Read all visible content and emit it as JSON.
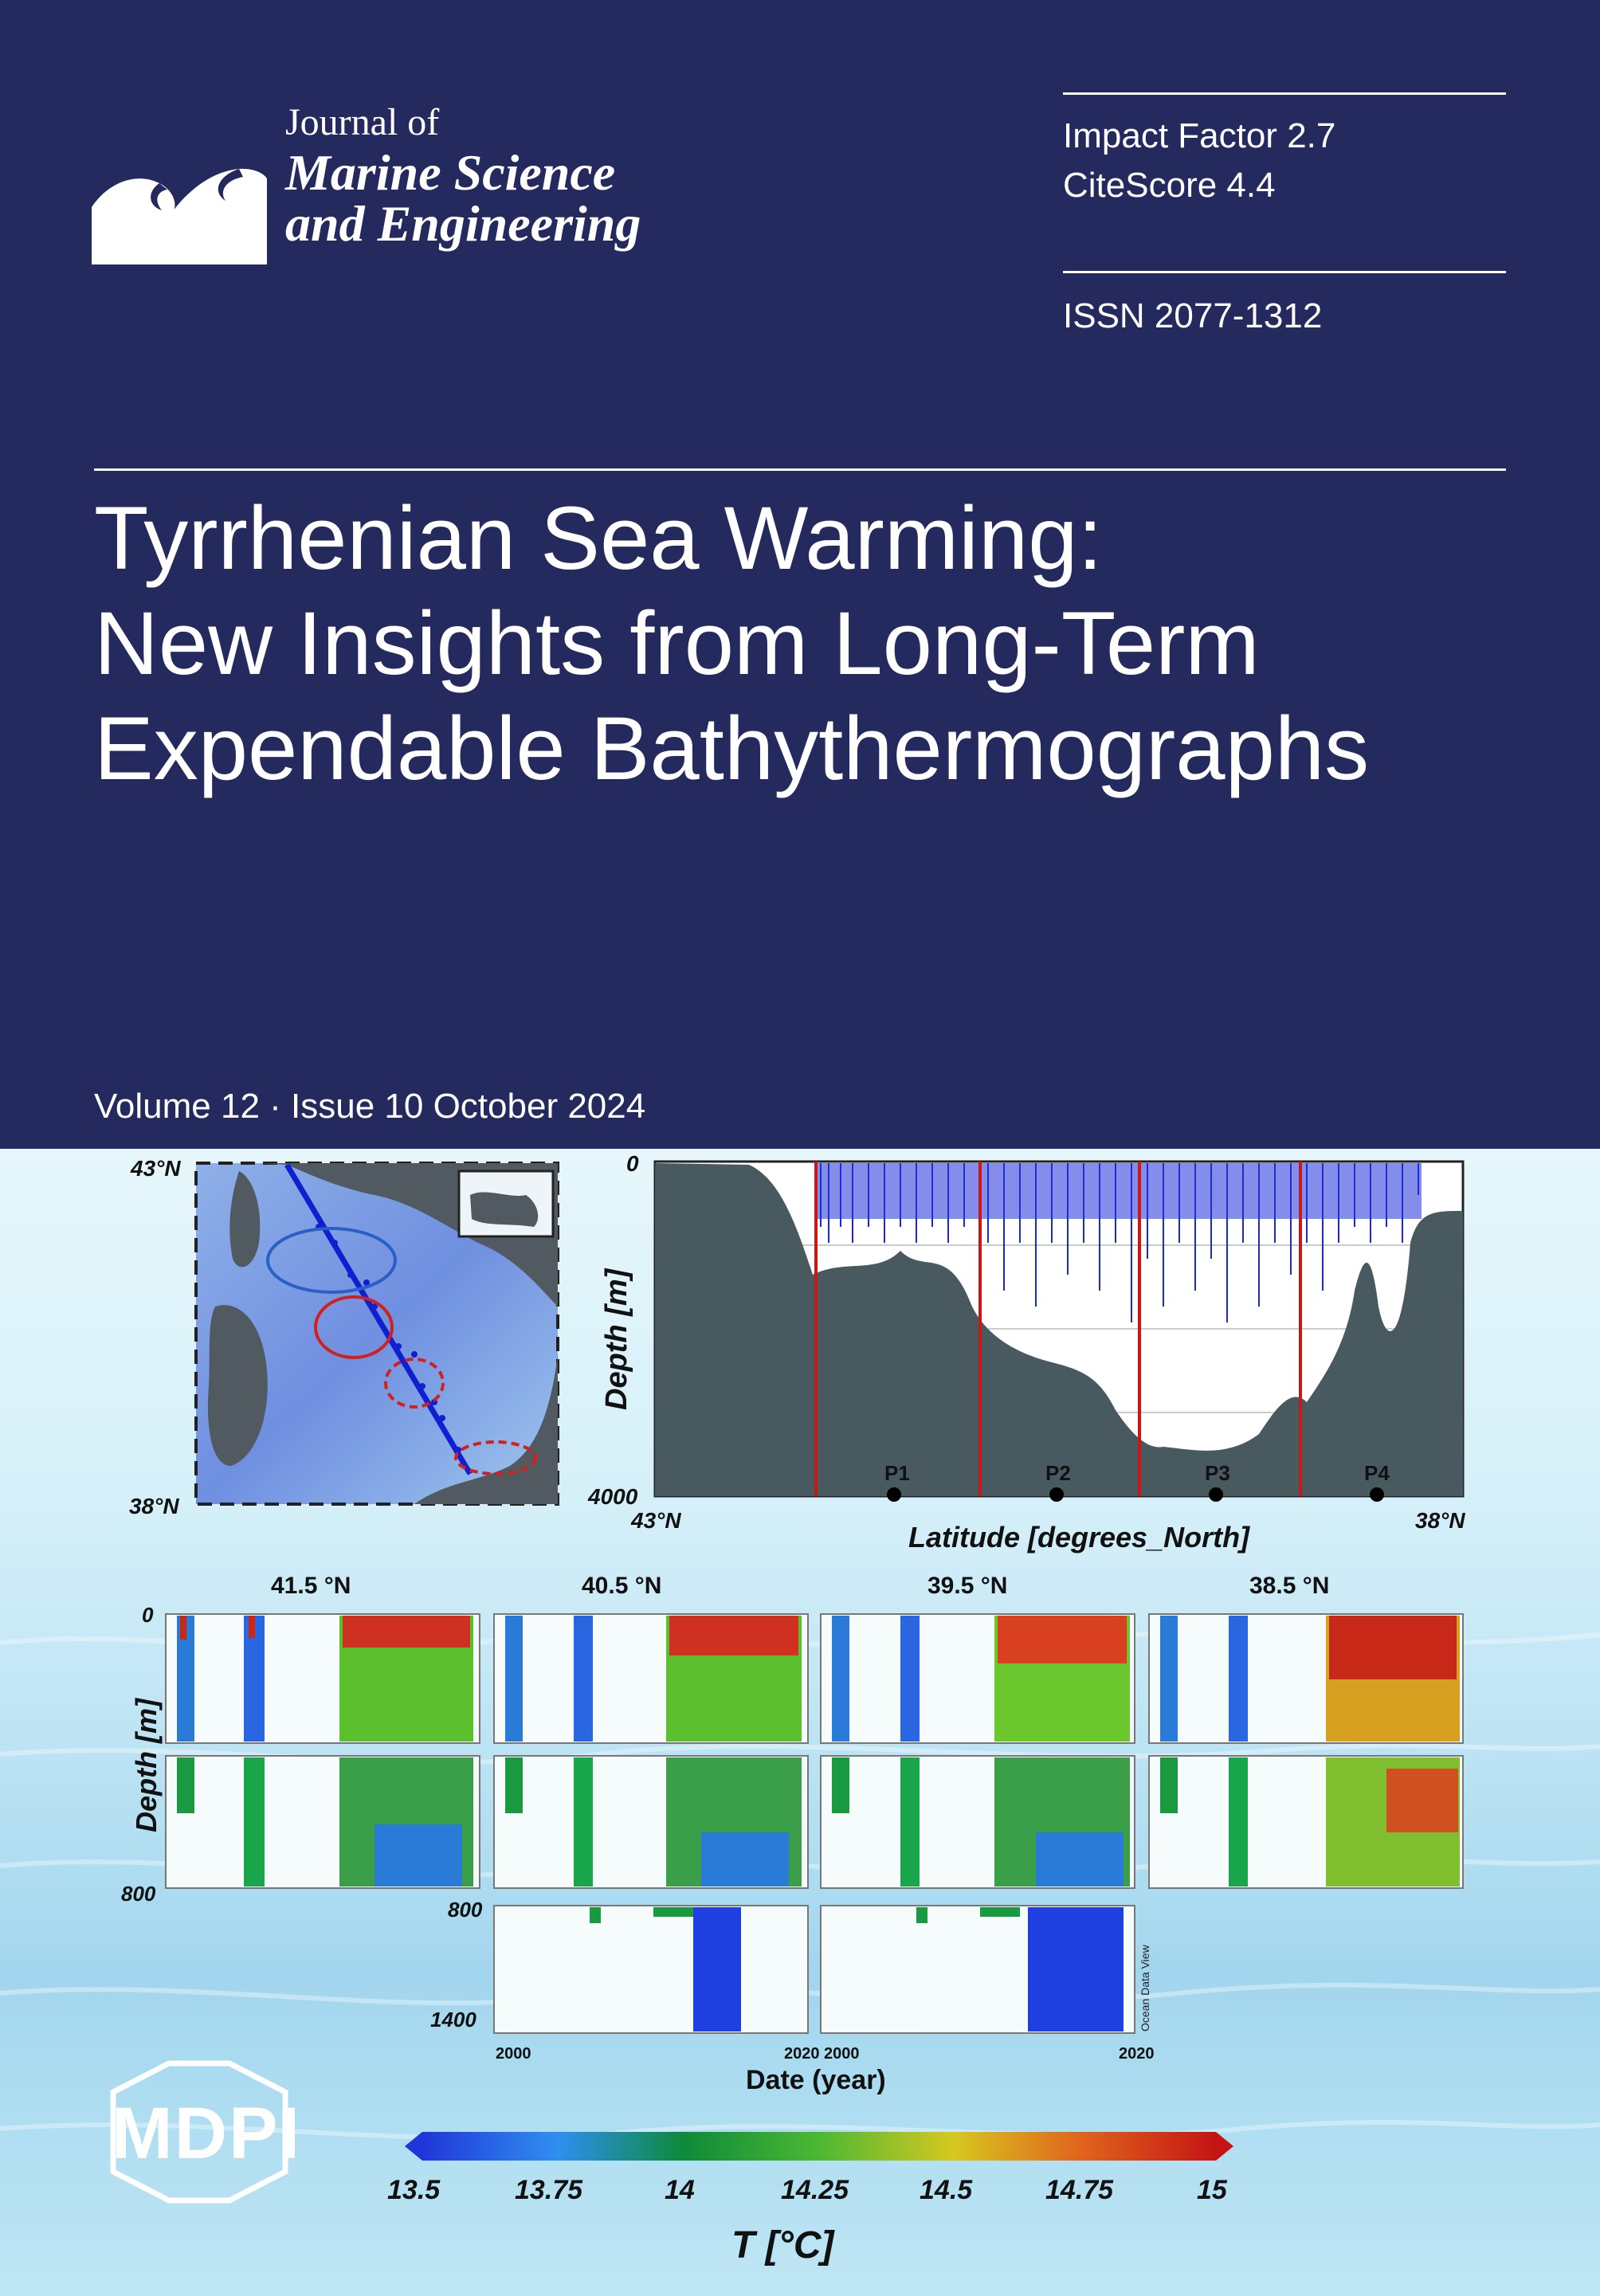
{
  "journal": {
    "name_line1": "Journal of",
    "name_line2": "Marine Science",
    "name_line3": "and Engineering"
  },
  "metrics": {
    "impact_factor": "Impact Factor 2.7",
    "citescore": "CiteScore 4.4",
    "issn": "ISSN 2077-1312"
  },
  "article_title": {
    "line1": "Tyrrhenian Sea Warming:",
    "line2": "New Insights from Long-Term",
    "line3": "Expendable Bathythermographs"
  },
  "issue": {
    "text": "Volume 12 · Issue 10 October 2024"
  },
  "publisher": {
    "logo_text": "MDPI"
  },
  "figure": {
    "map": {
      "lat_top": "43°N",
      "lat_bottom": "38°N"
    },
    "section": {
      "ylabel": "Depth [m]",
      "ytick_top": "0",
      "ytick_bottom": "4000",
      "xtick_left": "43°N",
      "xtick_right": "38°N",
      "xlabel": "Latitude [degrees_North]",
      "points": [
        "P1",
        "P2",
        "P3",
        "P4"
      ]
    },
    "panels": {
      "titles": [
        "41.5 °N",
        "40.5 °N",
        "39.5 °N",
        "38.5 °N"
      ],
      "ylabel": "Depth [m]",
      "ytick_0": "0",
      "ytick_800": "800",
      "ytick_800b": "800",
      "ytick_1400": "1400",
      "xtick_2000a": "2000",
      "xtick_2020a": "2020",
      "xtick_2000b": "2000",
      "xtick_2020b": "2020",
      "xlabel": "Date (year)",
      "watermark": "Ocean Data View"
    },
    "colorbar": {
      "ticks": [
        "13.5",
        "13.75",
        "14",
        "14.25",
        "14.5",
        "14.75",
        "15"
      ],
      "label": "T [°C]"
    }
  },
  "colors": {
    "cover_navy": "#242a5d",
    "text_white": "#ffffff"
  }
}
